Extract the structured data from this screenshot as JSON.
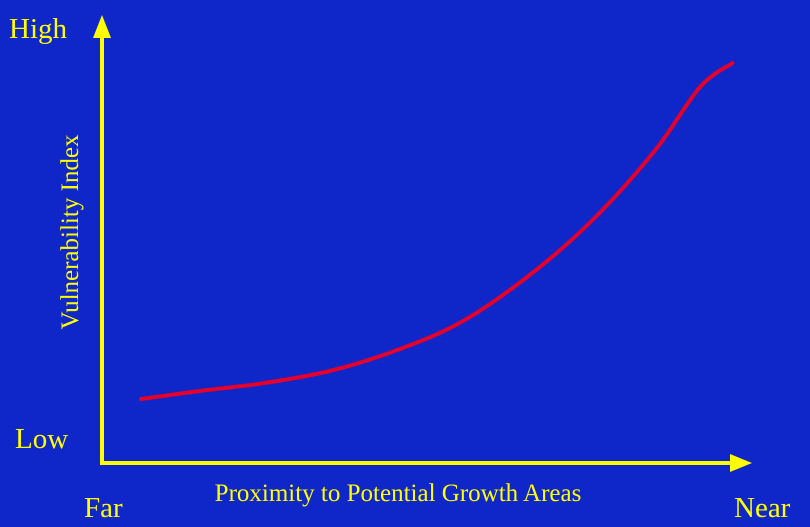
{
  "colors": {
    "background": "#0f26c8",
    "axis": "#ffff00",
    "text": "#ffff00",
    "curve": "#e4002b"
  },
  "chart_data": {
    "type": "line",
    "title": "",
    "xlabel": "Proximity to Potential Growth Areas",
    "ylabel": "Vulnerability Index",
    "x_tick_labels": {
      "low": "Far",
      "high": "Near"
    },
    "y_tick_labels": {
      "low": "Low",
      "high": "High"
    },
    "xlim": [
      0,
      1
    ],
    "ylim": [
      0,
      1
    ],
    "grid": false,
    "legend": "none",
    "series": [
      {
        "x": [
          0.06,
          0.15,
          0.25,
          0.35,
          0.45,
          0.55,
          0.65,
          0.75,
          0.85,
          0.92,
          0.97
        ],
        "y": [
          0.16,
          0.18,
          0.2,
          0.23,
          0.28,
          0.35,
          0.46,
          0.6,
          0.78,
          0.94,
          1.0
        ]
      }
    ]
  }
}
